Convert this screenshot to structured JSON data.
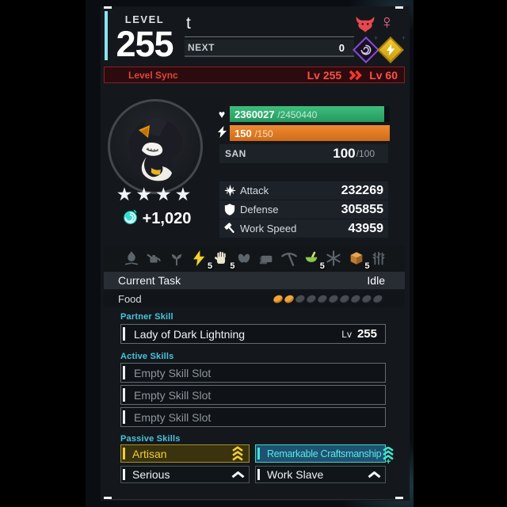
{
  "header": {
    "level_label": "LEVEL",
    "level_value": "255",
    "name": "t",
    "next_label": "NEXT",
    "next_value": "0",
    "gender_symbol": "♀",
    "gender": "female",
    "alpha_icon": "alpha-boss-icon",
    "elements": [
      {
        "name": "Dark"
      },
      {
        "name": "Electric"
      }
    ]
  },
  "level_sync": {
    "label": "Level Sync",
    "from": "Lv 255",
    "to": "Lv 60"
  },
  "portrait": {
    "stars": 4,
    "star_glyph": "★",
    "soul_bonus": "+1,020"
  },
  "vitals": {
    "hp": {
      "current": "2360027",
      "max": "/2450440",
      "pct": 96.3
    },
    "sp": {
      "current": "150",
      "max": "/150",
      "pct": 100
    },
    "san": {
      "label": "SAN",
      "value": "100",
      "max": "/100"
    }
  },
  "stats": {
    "rows": [
      {
        "label": "Attack",
        "value": "232269"
      },
      {
        "label": "Defense",
        "value": "305855"
      },
      {
        "label": "Work Speed",
        "value": "43959"
      }
    ]
  },
  "work_suitability": {
    "items": [
      {
        "name": "Kindling",
        "active": false,
        "level": ""
      },
      {
        "name": "Watering",
        "active": false,
        "level": ""
      },
      {
        "name": "Planting",
        "active": false,
        "level": ""
      },
      {
        "name": "Generating Electricity",
        "active": true,
        "level": "5"
      },
      {
        "name": "Handiwork",
        "active": true,
        "level": "5"
      },
      {
        "name": "Gathering",
        "active": false,
        "level": ""
      },
      {
        "name": "Lumbering",
        "active": false,
        "level": ""
      },
      {
        "name": "Mining",
        "active": false,
        "level": ""
      },
      {
        "name": "Medicine Production",
        "active": true,
        "level": "5"
      },
      {
        "name": "Cooling",
        "active": false,
        "level": ""
      },
      {
        "name": "Transporting",
        "active": true,
        "level": "5"
      },
      {
        "name": "Farming",
        "active": false,
        "level": ""
      }
    ]
  },
  "task": {
    "label": "Current Task",
    "value": "Idle"
  },
  "food": {
    "label": "Food",
    "filled": 2,
    "total": 10
  },
  "partner_skill": {
    "section": "Partner Skill",
    "name": "Lady of Dark Lightning",
    "level_label": "Lv",
    "level": "255"
  },
  "active_skills": {
    "section": "Active Skills",
    "slots": [
      "Empty Skill Slot",
      "Empty Skill Slot",
      "Empty Skill Slot"
    ]
  },
  "passive_skills": {
    "section": "Passive Skills",
    "items": [
      {
        "name": "Artisan",
        "rank": 3,
        "style": "gold"
      },
      {
        "name": "Remarkable Craftsmanship",
        "rank": 4,
        "style": "teal"
      },
      {
        "name": "Serious",
        "rank": 1,
        "style": "plain"
      },
      {
        "name": "Work Slave",
        "rank": 1,
        "style": "plain"
      }
    ]
  },
  "colors": {
    "hp_bar": "#2fa96d",
    "sp_bar": "#e0761f",
    "accent_cyan": "#49c4dc",
    "sync_red": "#e8443c",
    "gold": "#f0ce36",
    "teal": "#3ee6cf"
  }
}
